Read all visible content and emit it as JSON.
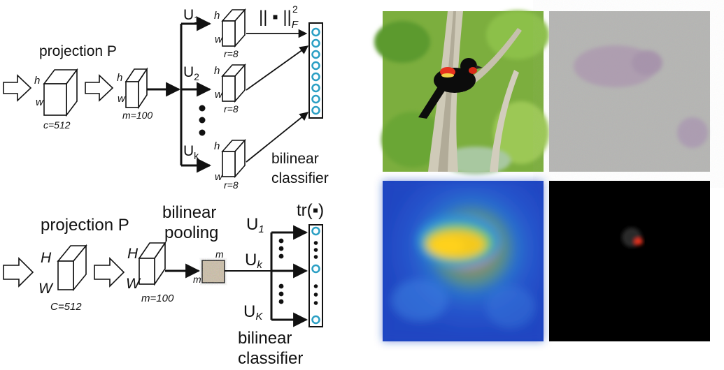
{
  "top_pipeline": {
    "projection_label": "projection P",
    "input_dims": {
      "h": "h",
      "w": "w",
      "c": "c=512"
    },
    "projected_dims": {
      "h": "h",
      "w": "w",
      "m": "m=100"
    },
    "branch_labels": {
      "u1": "U",
      "u1_sub": "1",
      "u2": "U",
      "u2_sub": "2",
      "uk": "U",
      "uk_sub": "k"
    },
    "branch_dims": {
      "h": "h",
      "w": "w",
      "r": "r=8"
    },
    "norm_label": "|| ▪ ||",
    "norm_sub": "F",
    "norm_sup": "2",
    "classifier_label_1": "bilinear",
    "classifier_label_2": "classifier"
  },
  "bottom_pipeline": {
    "projection_label": "projection P",
    "pooling_label_1": "bilinear",
    "pooling_label_2": "pooling",
    "input_dims": {
      "h": "H",
      "w": "W",
      "c": "C=512"
    },
    "projected_dims": {
      "h": "H",
      "w": "W",
      "m": "m=100"
    },
    "pool_dims": {
      "top": "m",
      "left": "m"
    },
    "trace_label": "tr(▪)",
    "branch_labels": {
      "u1": "U",
      "u1_sub": "1",
      "uk": "U",
      "uk_sub": "k",
      "uK": "U",
      "uK_sub": "K"
    },
    "classifier_label_1": "bilinear",
    "classifier_label_2": "classifier"
  },
  "panels": {
    "top_left": "photo of a red-winged blackbird on a birch branch",
    "top_right": "gradient noise map",
    "bottom_left": "heatmap",
    "bottom_right": "masked bird on black"
  },
  "colors": {
    "stroke": "#111111",
    "node_stroke": "#2a9fc4",
    "heatmap_low": "#1f4fc8",
    "heatmap_high": "#ffd21a",
    "bird_wing": "#e8321e"
  }
}
